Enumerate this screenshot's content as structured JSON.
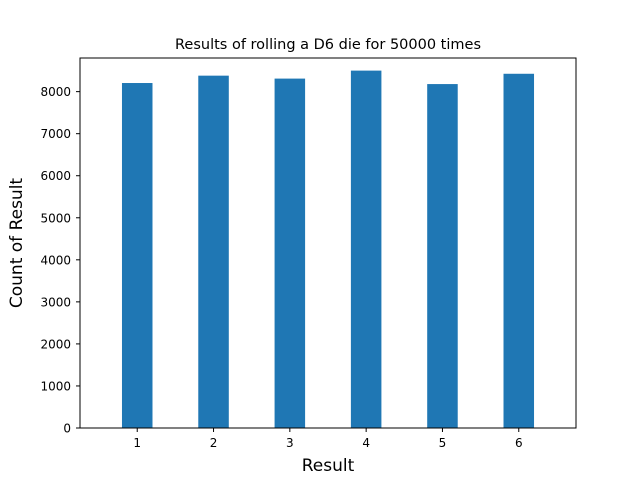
{
  "chart_data": {
    "type": "bar",
    "title": "Results of rolling a D6 die for 50000 times",
    "xlabel": "Result",
    "ylabel": "Count of Result",
    "categories": [
      "1",
      "2",
      "3",
      "4",
      "5",
      "6"
    ],
    "values": [
      8205,
      8380,
      8310,
      8500,
      8180,
      8425
    ],
    "bar_color": "#1f77b4",
    "ylim": [
      0,
      8800
    ],
    "yticks": [
      0,
      1000,
      2000,
      3000,
      4000,
      5000,
      6000,
      7000,
      8000
    ],
    "grid": false,
    "legend": "none"
  }
}
